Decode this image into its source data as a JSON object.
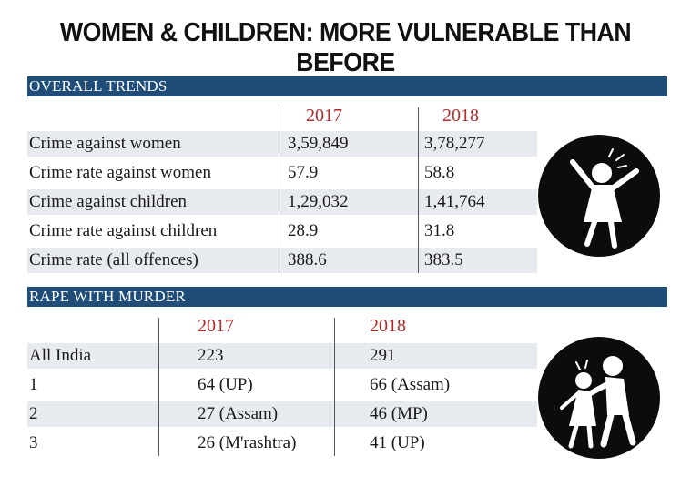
{
  "title": "WOMEN & CHILDREN: MORE VULNERABLE THAN BEFORE",
  "chart_data": [
    {
      "type": "table",
      "title": "OVERALL TRENDS",
      "columns": [
        "",
        "2017",
        "2018"
      ],
      "rows": [
        [
          "Crime against women",
          "3,59,849",
          "3,78,277"
        ],
        [
          "Crime rate against women",
          "57.9",
          "58.8"
        ],
        [
          "Crime against children",
          "1,29,032",
          "1,41,764"
        ],
        [
          "Crime rate against children",
          "28.9",
          "31.8"
        ],
        [
          "Crime rate (all offences)",
          "388.6",
          "383.5"
        ]
      ]
    },
    {
      "type": "table",
      "title": "RAPE WITH MURDER",
      "columns": [
        "",
        "2017",
        "2018"
      ],
      "rows": [
        [
          "All India",
          "223",
          "291"
        ],
        [
          "1",
          "64 (UP)",
          "66 (Assam)"
        ],
        [
          "2",
          "27 (Assam)",
          "46 (MP)"
        ],
        [
          "3",
          "26 (M'rashtra)",
          "41 (UP)"
        ]
      ]
    }
  ],
  "icons": [
    "distressed-girl-icon",
    "assault-figures-icon"
  ]
}
